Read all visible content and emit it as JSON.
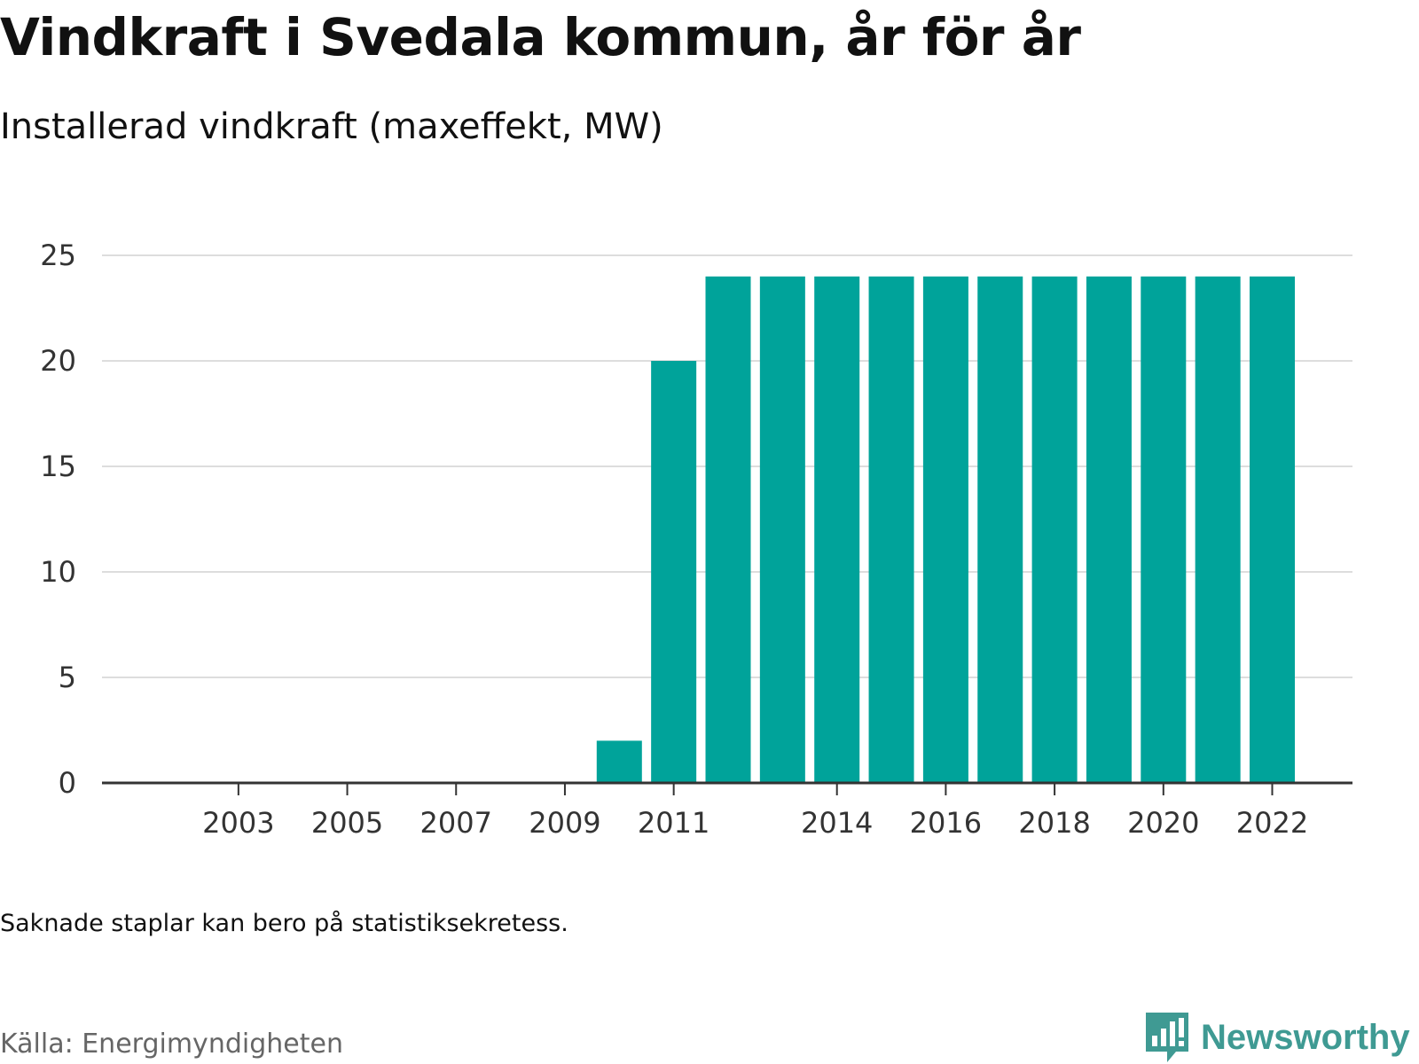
{
  "header": {
    "title": "Vindkraft i Svedala kommun, år för år",
    "subtitle": "Installerad vindkraft (maxeffekt, MW)"
  },
  "footer": {
    "note": "Saknade staplar kan bero på statistiksekretess.",
    "source": "Källa: Energimyndigheten",
    "brand": "Newsworthy",
    "brand_icon": "bar-chart-speech-bubble-icon"
  },
  "colors": {
    "bar": "#00a39a",
    "grid": "#dddddd",
    "axis": "#333333",
    "brand": "#3f9a93"
  },
  "chart_data": {
    "type": "bar",
    "title": "Vindkraft i Svedala kommun, år för år",
    "subtitle": "Installerad vindkraft (maxeffekt, MW)",
    "xlabel": "",
    "ylabel": "",
    "ylim": [
      0,
      25
    ],
    "yticks": [
      0,
      5,
      10,
      15,
      20,
      25
    ],
    "grid": true,
    "legend": "none",
    "categories": [
      2002,
      2003,
      2004,
      2005,
      2006,
      2007,
      2008,
      2009,
      2010,
      2011,
      2012,
      2013,
      2014,
      2015,
      2016,
      2017,
      2018,
      2019,
      2020,
      2021,
      2022
    ],
    "xtick_labels": [
      "2003",
      "2005",
      "2007",
      "2009",
      "2011",
      "2014",
      "2016",
      "2018",
      "2020",
      "2022"
    ],
    "values": [
      0,
      0,
      0,
      0,
      0,
      0,
      0,
      0,
      2,
      20,
      24,
      24,
      24,
      24,
      24,
      24,
      24,
      24,
      24,
      24,
      24
    ]
  }
}
